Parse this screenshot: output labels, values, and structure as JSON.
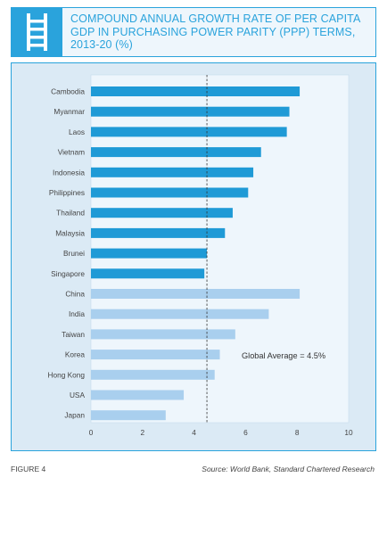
{
  "header": {
    "title": "COMPOUND ANNUAL GROWTH RATE OF PER CAPITA GDP IN PURCHASING POWER PARITY (PPP) TERMS, 2013-20 (%)",
    "icon": "ladder-icon"
  },
  "footer": {
    "figure_label": "FIGURE 4",
    "source": "Source: World Bank, Standard Chartered Research"
  },
  "colors": {
    "accent": "#2aa3dc",
    "bar_dark": "#1f9ad6",
    "bar_light": "#a9cfee",
    "plot_bg": "#eef6fc",
    "frame_bg": "#dbeaf5"
  },
  "chart_data": {
    "type": "bar",
    "orientation": "horizontal",
    "categories": [
      "Cambodia",
      "Myanmar",
      "Laos",
      "Vietnam",
      "Indonesia",
      "Philippines",
      "Thailand",
      "Malaysia",
      "Brunei",
      "Singapore",
      "China",
      "India",
      "Taiwan",
      "Korea",
      "Hong Kong",
      "USA",
      "Japan"
    ],
    "values": [
      8.1,
      7.7,
      7.6,
      6.6,
      6.3,
      6.1,
      5.5,
      5.2,
      4.5,
      4.4,
      8.1,
      6.9,
      5.6,
      5.0,
      4.8,
      3.6,
      2.9
    ],
    "groups": [
      "dark",
      "dark",
      "dark",
      "dark",
      "dark",
      "dark",
      "dark",
      "dark",
      "dark",
      "dark",
      "light",
      "light",
      "light",
      "light",
      "light",
      "light",
      "light"
    ],
    "xlim": [
      0,
      10
    ],
    "xticks": [
      0,
      2,
      4,
      6,
      8,
      10
    ],
    "reference_line": {
      "value": 4.5,
      "label": "Global Average = 4.5%"
    },
    "title": "",
    "xlabel": "",
    "ylabel": "",
    "grid": false
  }
}
